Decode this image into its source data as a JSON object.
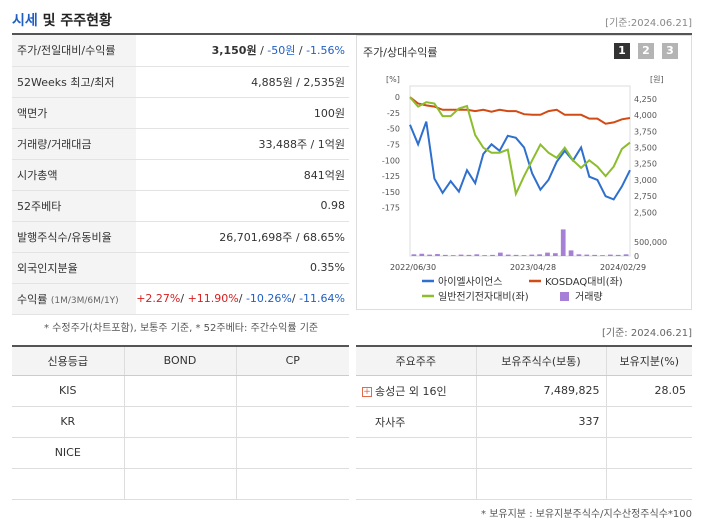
{
  "header": {
    "title_accent": "시세",
    "title_rest": "및 주주현황",
    "date": "[기준:2024.06.21]"
  },
  "summary": {
    "rows": [
      {
        "label": "주가/전일대비/수익률",
        "price": "3,150원",
        "sep1": " / ",
        "change": "-50원",
        "sep2": " / ",
        "rate": "-1.56%"
      },
      {
        "label": "52Weeks 최고/최저",
        "value": "4,885원 / 2,535원"
      },
      {
        "label": "액면가",
        "value": "100원"
      },
      {
        "label": "거래량/거래대금",
        "value": "33,488주 / 1억원"
      },
      {
        "label": "시가총액",
        "value": "841억원"
      },
      {
        "label": "52주베타",
        "value": "0.98"
      },
      {
        "label": "발행주식수/유동비율",
        "value": "26,701,698주 / 68.65%"
      },
      {
        "label": "외국인지분율",
        "value": "0.35%"
      },
      {
        "label": "수익률",
        "sub": "(1M/3M/6M/1Y)",
        "r1": "+2.27%",
        "r2": "+11.90%",
        "r3": "-10.26%",
        "r4": "-11.64%",
        "sep": "/ "
      }
    ],
    "note": "* 수정주가(차트포함), 보통주 기준, * 52주베타: 주간수익률 기준"
  },
  "chart_data": {
    "type": "line",
    "title": "주가/상대수익률",
    "period_buttons": [
      "1",
      "2",
      "3"
    ],
    "active_period": "1",
    "left_unit": "[%]",
    "right_unit": "[원]",
    "left_ticks": [
      "0",
      "-25",
      "-50",
      "-75",
      "-100",
      "-125",
      "-150",
      "-175"
    ],
    "right_ticks": [
      "4,250",
      "4,000",
      "3,750",
      "3,500",
      "3,250",
      "3,000",
      "2,750",
      "2,500"
    ],
    "volume_tick": "500,000",
    "volume_zero": "0",
    "ylim_left": [
      -185,
      5
    ],
    "ylim_right": [
      2475,
      4325
    ],
    "volume_max": 1000000,
    "x_labels": [
      "2022/06/30",
      "2023/04/28",
      "2024/02/29"
    ],
    "series": [
      {
        "name": "아이엘사이언스",
        "color": "#2f6fce",
        "axis": "right",
        "values": [
          3850,
          3550,
          3900,
          3020,
          2800,
          2980,
          2820,
          3150,
          2950,
          3400,
          3550,
          3450,
          3680,
          3650,
          3500,
          3100,
          2850,
          3000,
          3280,
          3450,
          3300,
          3500,
          3050,
          3000,
          2750,
          2700,
          2900,
          3150
        ]
      },
      {
        "name": "KOSDAQ대비(좌)",
        "color": "#d24a14",
        "axis": "left",
        "values": [
          0,
          -10,
          -13,
          -15,
          -20,
          -20,
          -20,
          -20,
          -22,
          -20,
          -23,
          -20,
          -22,
          -22,
          -27,
          -28,
          -28,
          -22,
          -20,
          -28,
          -28,
          -28,
          -34,
          -34,
          -42,
          -40,
          -35,
          -33
        ]
      },
      {
        "name": "일반전기전자대비(좌)",
        "color": "#8cbd2c",
        "axis": "left",
        "values": [
          0,
          -15,
          -8,
          -10,
          -30,
          -30,
          -18,
          -14,
          -60,
          -80,
          -88,
          -88,
          -83,
          -153,
          -125,
          -100,
          -75,
          -88,
          -96,
          -80,
          -100,
          -112,
          -100,
          -110,
          -125,
          -110,
          -82,
          -72
        ]
      },
      {
        "name": "거래량",
        "color": "#a67fd6",
        "axis": "volume",
        "values": [
          60000,
          80000,
          50000,
          70000,
          40000,
          30000,
          50000,
          40000,
          60000,
          30000,
          40000,
          120000,
          50000,
          40000,
          30000,
          50000,
          60000,
          120000,
          100000,
          950000,
          200000,
          60000,
          50000,
          40000,
          30000,
          50000,
          40000,
          60000
        ]
      }
    ]
  },
  "date2": "[기준: 2024.06.21]",
  "credit": {
    "headers": [
      "신용등급",
      "BOND",
      "CP"
    ],
    "rows": [
      [
        "KIS",
        "",
        ""
      ],
      [
        "KR",
        "",
        ""
      ],
      [
        "NICE",
        "",
        ""
      ],
      [
        "",
        "",
        ""
      ]
    ]
  },
  "holders": {
    "headers": [
      "주요주주",
      "보유주식수(보통)",
      "보유지분(%)"
    ],
    "rows": [
      {
        "name": "송성근 외 16인",
        "shares": "7,489,825",
        "pct": "28.05",
        "expand": "+"
      },
      {
        "name": "자사주",
        "shares": "337",
        "pct": ""
      },
      {
        "name": "",
        "shares": "",
        "pct": ""
      },
      {
        "name": "",
        "shares": "",
        "pct": ""
      }
    ],
    "note": "* 보유지분 : 보유지분주식수/지수산정주식수*100"
  }
}
